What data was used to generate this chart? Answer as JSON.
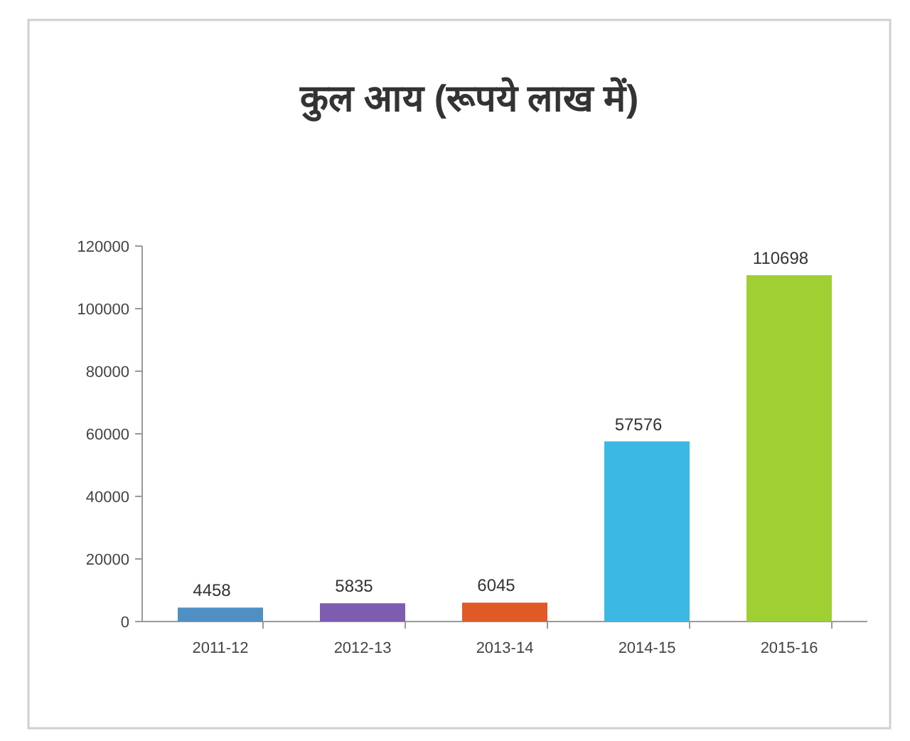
{
  "chart_data": {
    "type": "bar",
    "title": "कुल आय (रूपये लाख में)",
    "categories": [
      "2011-12",
      "2012-13",
      "2013-14",
      "2014-15",
      "2015-16"
    ],
    "values": [
      4458,
      5835,
      6045,
      57576,
      110698
    ],
    "colors": [
      "#4f8fc4",
      "#7e5cb0",
      "#e05a28",
      "#3bb8e3",
      "#9fcf32"
    ],
    "ylim": [
      0,
      120000
    ],
    "yticks": [
      0,
      20000,
      40000,
      60000,
      80000,
      100000,
      120000
    ],
    "data_labels": true
  }
}
